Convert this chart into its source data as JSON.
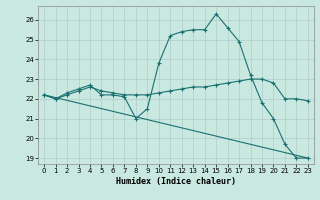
{
  "xlabel": "Humidex (Indice chaleur)",
  "bg_color": "#c8e8e0",
  "grid_color": "#b0cccc",
  "line_color": "#1a7070",
  "xlim": [
    -0.5,
    23.5
  ],
  "ylim": [
    18.7,
    26.7
  ],
  "yticks": [
    19,
    20,
    21,
    22,
    23,
    24,
    25,
    26
  ],
  "xticks": [
    0,
    1,
    2,
    3,
    4,
    5,
    6,
    7,
    8,
    9,
    10,
    11,
    12,
    13,
    14,
    15,
    16,
    17,
    18,
    19,
    20,
    21,
    22,
    23
  ],
  "series1_x": [
    0,
    1,
    2,
    3,
    4,
    5,
    6,
    7,
    8,
    9,
    10,
    11,
    12,
    13,
    14,
    15,
    16,
    17,
    18,
    19,
    20,
    21,
    22,
    23
  ],
  "series1_y": [
    22.2,
    22.0,
    22.3,
    22.5,
    22.7,
    22.2,
    22.2,
    22.1,
    21.0,
    21.5,
    23.8,
    25.2,
    25.4,
    25.5,
    25.5,
    26.3,
    25.6,
    24.9,
    23.2,
    21.8,
    21.0,
    19.7,
    19.0,
    19.0
  ],
  "series2_x": [
    0,
    1,
    2,
    3,
    4,
    5,
    6,
    7,
    8,
    9,
    10,
    11,
    12,
    13,
    14,
    15,
    16,
    17,
    18,
    19,
    20,
    21,
    22,
    23
  ],
  "series2_y": [
    22.2,
    22.0,
    22.2,
    22.4,
    22.6,
    22.4,
    22.3,
    22.2,
    22.2,
    22.2,
    22.3,
    22.4,
    22.5,
    22.6,
    22.6,
    22.7,
    22.8,
    22.9,
    23.0,
    23.0,
    22.8,
    22.0,
    22.0,
    21.9
  ],
  "series3_x": [
    0,
    23
  ],
  "series3_y": [
    22.2,
    19.0
  ]
}
